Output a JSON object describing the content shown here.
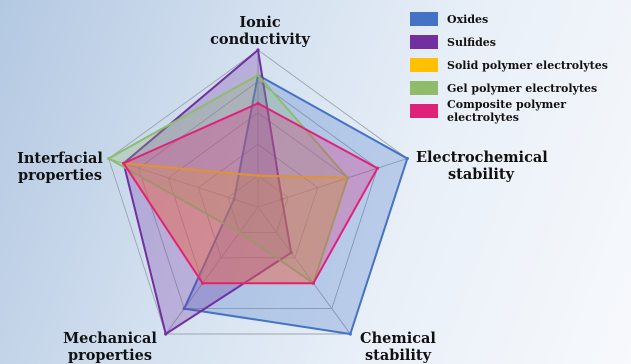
{
  "chart_data": {
    "type": "radar",
    "axes": [
      {
        "id": "ionic",
        "label_lines": [
          "Ionic",
          "conductivity"
        ]
      },
      {
        "id": "electrochemical",
        "label_lines": [
          "Electrochemical",
          "stability"
        ]
      },
      {
        "id": "chemical",
        "label_lines": [
          "Chemical",
          "stability"
        ]
      },
      {
        "id": "mechanical",
        "label_lines": [
          "Mechanical",
          "properties"
        ]
      },
      {
        "id": "interfacial",
        "label_lines": [
          "Interfacial",
          "properties"
        ]
      }
    ],
    "scale": [
      0,
      5
    ],
    "grid_levels": [
      1,
      2,
      3,
      4,
      5
    ],
    "grid": true,
    "legend_position": "top-right",
    "series": [
      {
        "name": "Oxides",
        "color": "#4472c4",
        "values": [
          4.2,
          5.0,
          5.0,
          4.0,
          0.8
        ]
      },
      {
        "name": "Sulfides",
        "color": "#7030a0",
        "values": [
          5.0,
          0.8,
          1.8,
          5.0,
          4.5
        ]
      },
      {
        "name": "Solid polymer electrolytes",
        "color": "#ffc000",
        "values": [
          1.0,
          3.0,
          3.0,
          3.0,
          4.5
        ]
      },
      {
        "name": "Gel polymer electrolytes",
        "color": "#8fbc6b",
        "values": [
          4.2,
          3.0,
          3.0,
          1.0,
          5.0
        ]
      },
      {
        "name": "Composite polymer electrolytes",
        "color": "#e0217a",
        "values": [
          3.3,
          4.0,
          3.0,
          3.0,
          4.5
        ]
      }
    ]
  }
}
